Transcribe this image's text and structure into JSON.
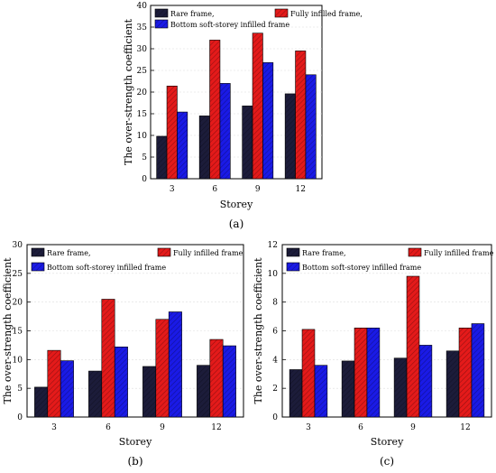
{
  "chart_data": [
    {
      "type": "bar",
      "panel_label": "(a)",
      "categories": [
        "3",
        "6",
        "9",
        "12"
      ],
      "series": [
        {
          "name": "Rare frame,",
          "color": "#1c1c3a",
          "values": [
            9.8,
            14.5,
            16.8,
            19.6
          ]
        },
        {
          "name": "Fully infilled frame,",
          "color": "#e41a1a",
          "values": [
            21.4,
            32.0,
            33.6,
            29.5
          ]
        },
        {
          "name": "Bottom soft-storey infilled frame",
          "color": "#1a1ae6",
          "values": [
            15.4,
            22.0,
            26.8,
            24.0
          ]
        }
      ],
      "xlabel": "Storey",
      "ylabel": "The over-strength coefficient",
      "ylim": [
        0,
        40
      ],
      "yticks": [
        0,
        5,
        10,
        15,
        20,
        25,
        30,
        35,
        40
      ]
    },
    {
      "type": "bar",
      "panel_label": "(b)",
      "categories": [
        "3",
        "6",
        "9",
        "12"
      ],
      "series": [
        {
          "name": "Rare frame,",
          "color": "#1c1c3a",
          "values": [
            5.2,
            8.0,
            8.8,
            9.0
          ]
        },
        {
          "name": "Fully infilled frame",
          "color": "#e41a1a",
          "values": [
            11.6,
            20.5,
            17.0,
            13.5
          ]
        },
        {
          "name": "Bottom soft-storey infilled frame",
          "color": "#1a1ae6",
          "values": [
            9.8,
            12.2,
            18.3,
            12.4
          ]
        }
      ],
      "xlabel": "Storey",
      "ylabel": "The over-strength coefficient",
      "ylim": [
        0,
        30
      ],
      "yticks": [
        0,
        5,
        10,
        15,
        20,
        25,
        30
      ]
    },
    {
      "type": "bar",
      "panel_label": "(c)",
      "categories": [
        "3",
        "6",
        "9",
        "12"
      ],
      "series": [
        {
          "name": "Rare frame,",
          "color": "#1c1c3a",
          "values": [
            3.3,
            3.9,
            4.1,
            4.6
          ]
        },
        {
          "name": "Fully infilled frame",
          "color": "#e41a1a",
          "values": [
            6.1,
            6.2,
            9.8,
            6.2
          ]
        },
        {
          "name": "Bottom soft-storey infilled frame",
          "color": "#1a1ae6",
          "values": [
            3.6,
            6.2,
            5.0,
            6.5
          ]
        }
      ],
      "xlabel": "Storey",
      "ylabel": "The over-strength coefficient",
      "ylim": [
        0,
        12
      ],
      "yticks": [
        0,
        2,
        4,
        6,
        8,
        10,
        12
      ]
    }
  ]
}
